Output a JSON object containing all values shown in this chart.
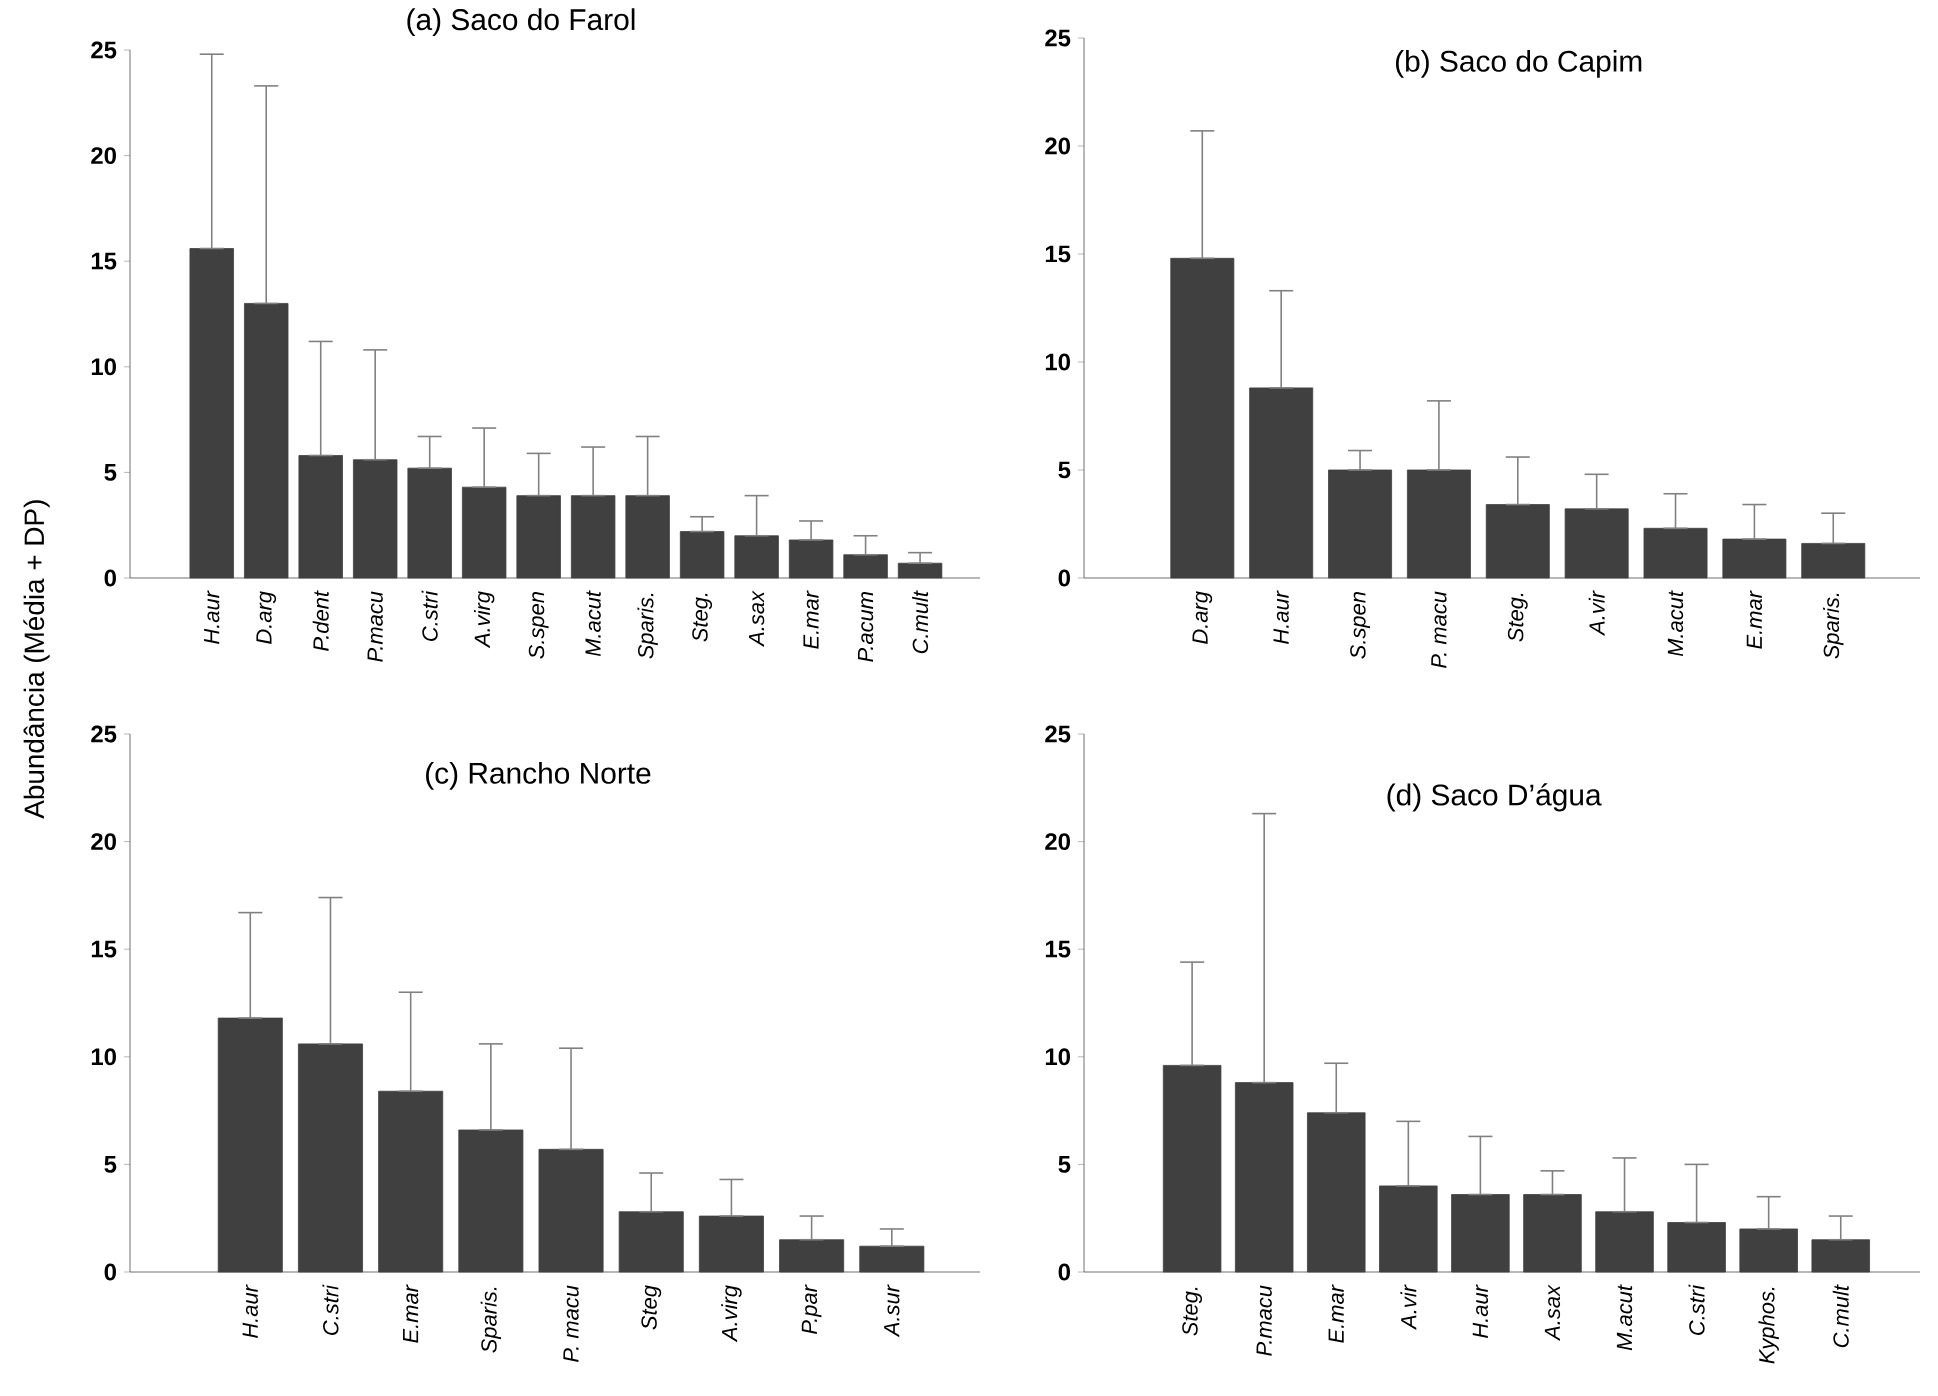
{
  "chart_data": [
    {
      "type": "bar",
      "title": "(a) Saco do Farol",
      "color": "#404040",
      "ylim": [
        0,
        25
      ],
      "yticks": [
        0,
        5,
        10,
        15,
        20,
        25
      ],
      "categories": [
        "H.aur",
        "D.arg",
        "P.dent",
        "P.macu",
        "C.stri",
        "A.virg",
        "S.spen",
        "M.acut",
        "Sparis.",
        "Steg.",
        "A.sax",
        "E.mar",
        "P.acum",
        "C.mult"
      ],
      "values": [
        15.6,
        13.0,
        5.8,
        5.6,
        5.2,
        4.3,
        3.9,
        3.9,
        3.9,
        2.2,
        2.0,
        1.8,
        1.1,
        0.7
      ],
      "errors": [
        [
          15.6,
          24.8
        ],
        [
          13.0,
          23.3
        ],
        [
          5.8,
          11.2
        ],
        [
          5.6,
          10.8
        ],
        [
          5.2,
          6.7
        ],
        [
          4.3,
          7.1
        ],
        [
          3.9,
          5.9
        ],
        [
          3.9,
          6.2
        ],
        [
          3.9,
          6.7
        ],
        [
          2.2,
          2.9
        ],
        [
          2.0,
          3.9
        ],
        [
          1.8,
          2.7
        ],
        [
          1.1,
          2.0
        ],
        [
          0.7,
          1.2
        ]
      ]
    },
    {
      "type": "bar",
      "title": "(b) Saco do Capim",
      "color": "#404040",
      "ylim": [
        0,
        25
      ],
      "yticks": [
        0,
        5,
        10,
        15,
        20,
        25
      ],
      "categories": [
        "D.arg",
        "H.aur",
        "S.spen",
        "P. macu",
        "Steg.",
        "A.vir",
        "M.acut",
        "E.mar",
        "Sparis."
      ],
      "values": [
        14.8,
        8.8,
        5.0,
        5.0,
        3.4,
        3.2,
        2.3,
        1.8,
        1.6
      ],
      "errors": [
        [
          14.8,
          20.7
        ],
        [
          8.8,
          13.3
        ],
        [
          5.0,
          5.9
        ],
        [
          5.0,
          8.2
        ],
        [
          3.4,
          5.6
        ],
        [
          3.2,
          4.8
        ],
        [
          2.3,
          3.9
        ],
        [
          1.8,
          3.4
        ],
        [
          1.6,
          3.0
        ]
      ]
    },
    {
      "type": "bar",
      "title": "(c) Rancho Norte",
      "ylabel": "Abundância (Média + DP)",
      "color": "#404040",
      "ylim": [
        0,
        25
      ],
      "yticks": [
        0,
        5,
        10,
        15,
        20,
        25
      ],
      "categories": [
        "H.aur",
        "C.stri",
        "E.mar",
        "Sparis.",
        "P. macu",
        "Steg",
        "A.virg",
        "P.par",
        "A.sur"
      ],
      "values": [
        11.8,
        10.6,
        8.4,
        6.6,
        5.7,
        2.8,
        2.6,
        1.5,
        1.2
      ],
      "errors": [
        [
          11.8,
          16.7
        ],
        [
          10.6,
          17.4
        ],
        [
          8.4,
          13.0
        ],
        [
          6.6,
          10.6
        ],
        [
          5.7,
          10.4
        ],
        [
          2.8,
          4.6
        ],
        [
          2.6,
          4.3
        ],
        [
          1.5,
          2.6
        ],
        [
          1.2,
          2.0
        ]
      ]
    },
    {
      "type": "bar",
      "title": "(d) Saco D’água",
      "color": "#404040",
      "ylim": [
        0,
        25
      ],
      "yticks": [
        0,
        5,
        10,
        15,
        20,
        25
      ],
      "categories": [
        "Steg.",
        "P.macu",
        "E.mar",
        "A.vir",
        "H.aur",
        "A.sax",
        "M.acut",
        "C.stri",
        "Kyphos.",
        "C.mult"
      ],
      "values": [
        9.6,
        8.8,
        7.4,
        4.0,
        3.6,
        3.6,
        2.8,
        2.3,
        2.0,
        1.5
      ],
      "errors": [
        [
          9.6,
          14.4
        ],
        [
          8.8,
          21.3
        ],
        [
          7.4,
          9.7
        ],
        [
          4.0,
          7.0
        ],
        [
          3.6,
          6.3
        ],
        [
          3.6,
          4.7
        ],
        [
          2.8,
          5.3
        ],
        [
          2.3,
          5.0
        ],
        [
          2.0,
          3.5
        ],
        [
          1.5,
          2.6
        ]
      ]
    }
  ]
}
